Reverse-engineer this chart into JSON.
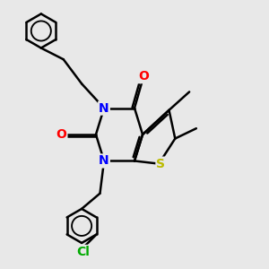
{
  "bg_color": "#e8e8e8",
  "bond_color": "#000000",
  "N_color": "#0000ff",
  "O_color": "#ff0000",
  "S_color": "#bbbb00",
  "Cl_color": "#00aa00",
  "line_width": 1.8,
  "dbo": 0.055,
  "font_size": 10,
  "fig_size": [
    3.0,
    3.0
  ],
  "dpi": 100,
  "xlim": [
    -2.5,
    4.0
  ],
  "ylim": [
    -3.2,
    3.2
  ]
}
